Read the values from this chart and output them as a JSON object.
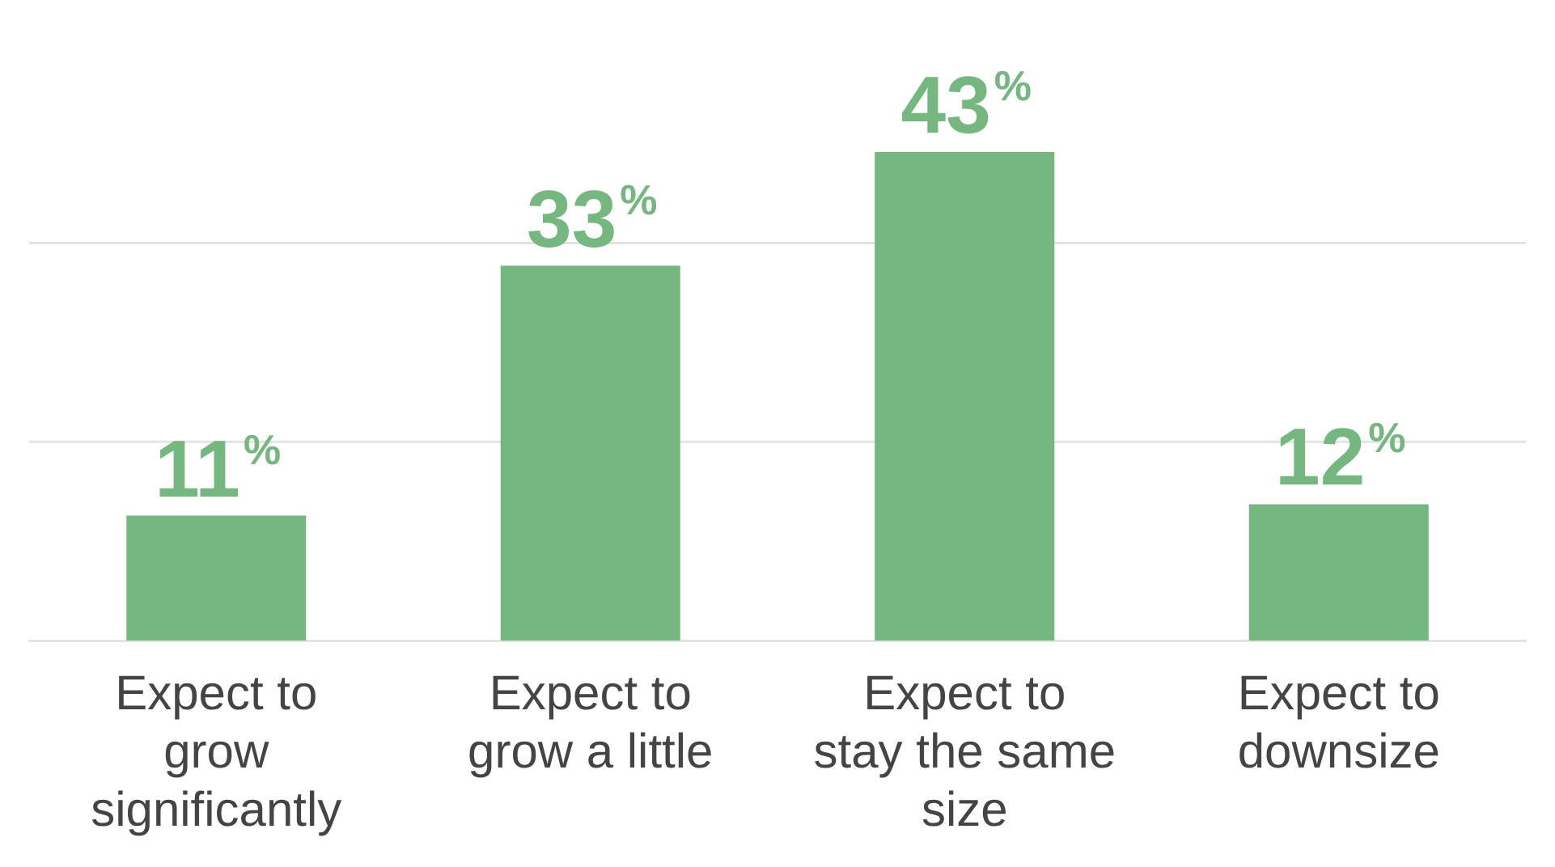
{
  "chart_data": {
    "type": "bar",
    "categories": [
      "Expect to grow significantly",
      "Expect to grow a little",
      "Expect to stay the same size",
      "Expect to downsize"
    ],
    "values": [
      11,
      33,
      43,
      12
    ],
    "color": "#74b77f",
    "value_labels": [
      "11%",
      "33%",
      "43%",
      "12%"
    ],
    "ref_lines": [
      {
        "axis": "y",
        "value": 17.5,
        "color": "#e3e3e3"
      },
      {
        "axis": "y",
        "value": 35,
        "color": "#e3e3e3"
      }
    ],
    "tick_labels": "x"
  }
}
